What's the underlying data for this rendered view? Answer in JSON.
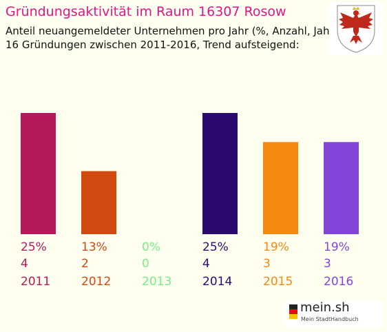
{
  "title": "Gründungsaktivität im Raum 16307 Rosow",
  "subtitle_line1": "Anteil neuangemeldeter Unternehmen pro Jahr (%, Anzahl, Jahr)",
  "subtitle_line2": "16 Gründungen zwischen 2011-2016, Trend aufsteigend:",
  "logo": {
    "name": "mein.sh",
    "tagline": "Mein StadtHandbuch"
  },
  "chart_data": {
    "type": "bar",
    "categories": [
      "2011",
      "2012",
      "2013",
      "2014",
      "2015",
      "2016"
    ],
    "values": [
      25,
      13,
      0,
      25,
      19,
      19
    ],
    "percent_labels": [
      "25%",
      "13%",
      "0%",
      "25%",
      "19%",
      "19%"
    ],
    "counts": [
      4,
      2,
      0,
      4,
      3,
      3
    ],
    "colors": [
      "#b5195b",
      "#d04a12",
      "#77ee88",
      "#2b0a6e",
      "#f5890f",
      "#8245d8"
    ],
    "ylim": [
      0,
      25
    ]
  }
}
